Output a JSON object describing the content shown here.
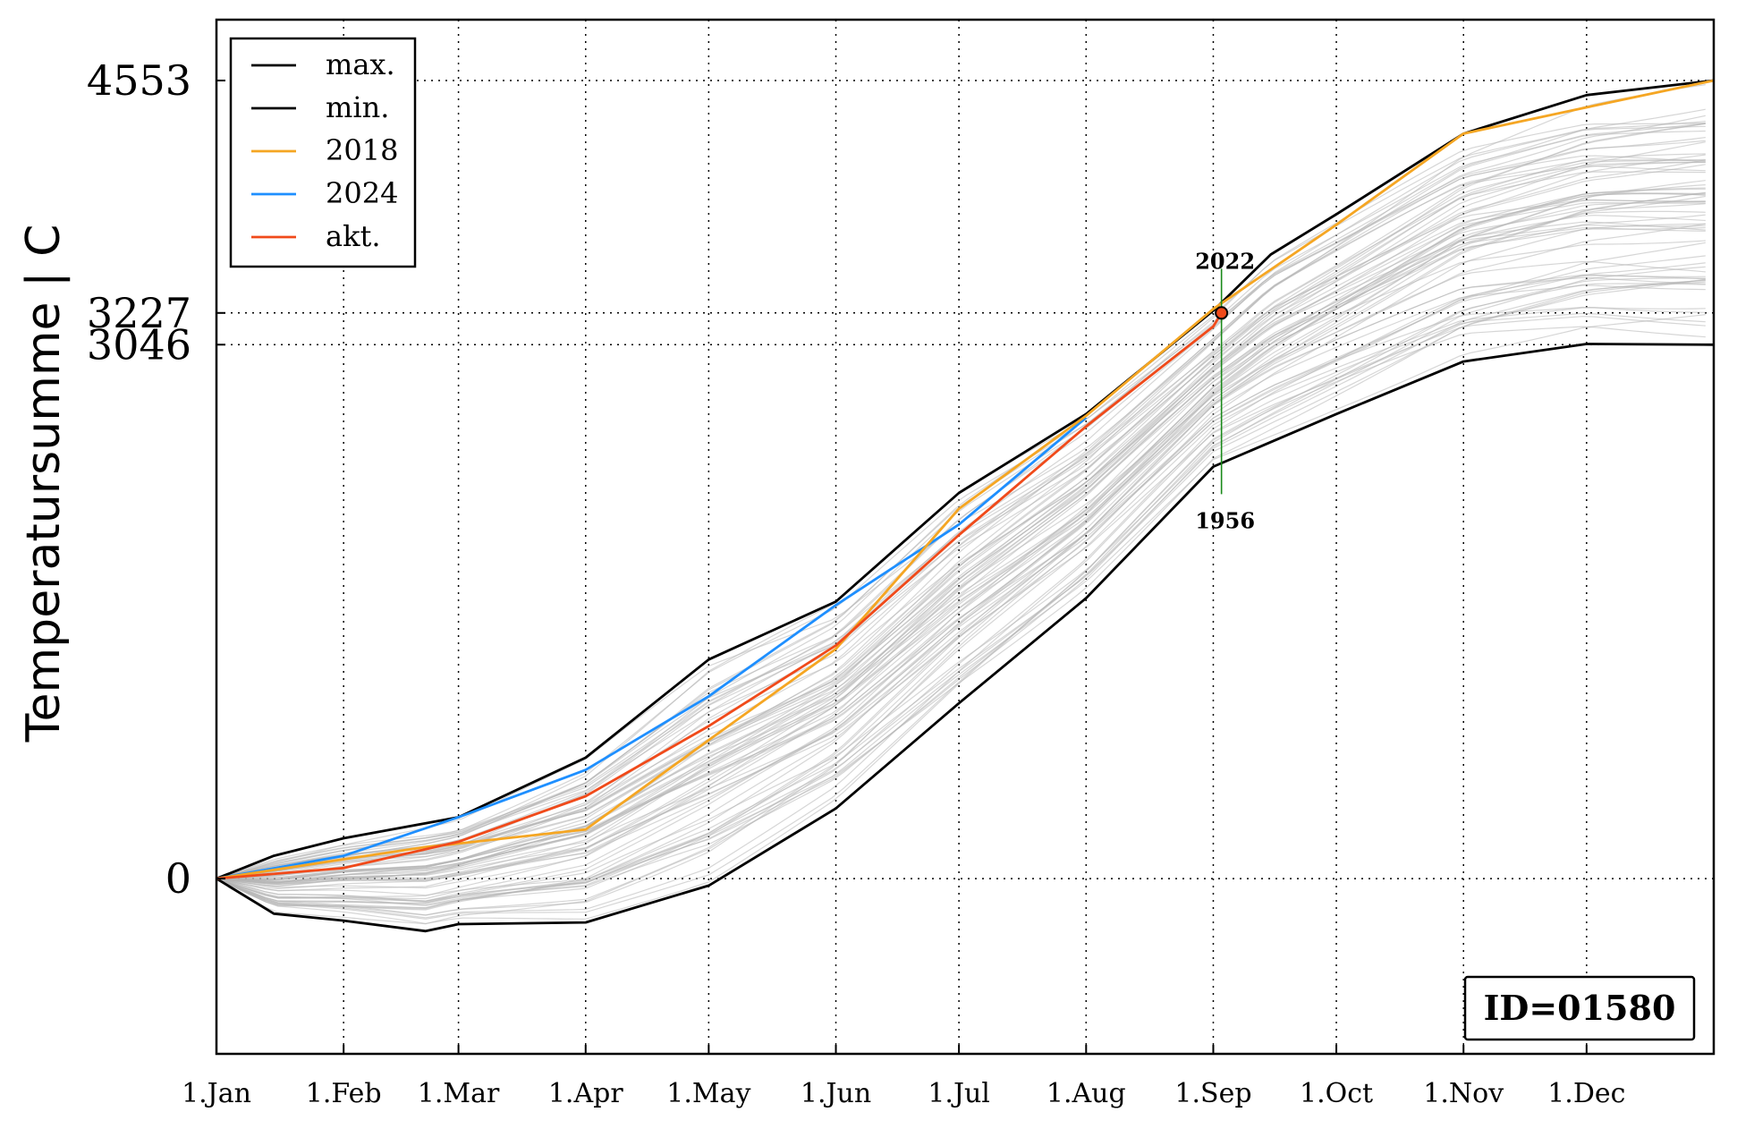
{
  "chart_data": {
    "type": "line",
    "xlabel": "",
    "ylabel": "Temperatursumme | C",
    "x_categories": [
      "1.Jan",
      "1.Feb",
      "1.Mar",
      "1.Apr",
      "1.May",
      "1.Jun",
      "1.Jul",
      "1.Aug",
      "1.Sep",
      "1.Oct",
      "1.Nov",
      "1.Dec"
    ],
    "x_unit": "day of year",
    "xlim": [
      1,
      366
    ],
    "ylim": [
      -1000,
      4900
    ],
    "yticks": [
      0,
      3046,
      3227,
      4553
    ],
    "grid": true,
    "legend_placement": "top-left",
    "series": [
      {
        "name": "max.",
        "color": "#000000",
        "x": [
          1,
          15,
          32,
          60,
          91,
          121,
          152,
          182,
          213,
          244,
          258,
          274,
          305,
          335,
          366
        ],
        "y": [
          0,
          130,
          230,
          350,
          690,
          1250,
          1580,
          2200,
          2650,
          3240,
          3560,
          3790,
          4250,
          4470,
          4553
        ]
      },
      {
        "name": "min.",
        "color": "#000000",
        "x": [
          1,
          15,
          32,
          52,
          60,
          91,
          121,
          152,
          182,
          213,
          244,
          274,
          305,
          335,
          366
        ],
        "y": [
          0,
          -200,
          -240,
          -300,
          -260,
          -250,
          -40,
          400,
          1000,
          1600,
          2350,
          2650,
          2950,
          3050,
          3046
        ]
      },
      {
        "name": "2018",
        "color": "#f5a623",
        "x": [
          1,
          32,
          52,
          60,
          91,
          121,
          152,
          182,
          213,
          244,
          274,
          305,
          335,
          366
        ],
        "y": [
          0,
          110,
          180,
          200,
          280,
          790,
          1310,
          2110,
          2640,
          3250,
          3730,
          4250,
          4400,
          4553
        ]
      },
      {
        "name": "2024",
        "color": "#1e8fff",
        "x": [
          1,
          32,
          60,
          91,
          121,
          152,
          182,
          213
        ],
        "y": [
          0,
          130,
          350,
          620,
          1040,
          1560,
          2020,
          2630
        ]
      },
      {
        "name": "akt.",
        "color": "#f04a1a",
        "x": [
          1,
          32,
          60,
          91,
          121,
          152,
          182,
          213,
          244,
          246
        ],
        "y": [
          0,
          60,
          210,
          470,
          870,
          1330,
          1960,
          2580,
          3150,
          3227
        ]
      }
    ],
    "current_point": {
      "x": 246,
      "y": 3227
    },
    "annotations": [
      {
        "text": "2022",
        "x": 246,
        "y": 3520
      },
      {
        "text": "1956",
        "x": 246,
        "y": 2040
      }
    ],
    "id_label": "ID=01580"
  },
  "colors": {
    "background": "#ffffff",
    "grid": "#000000",
    "historical": "#b5b5b5",
    "marker_line": "#1a8a1a"
  }
}
